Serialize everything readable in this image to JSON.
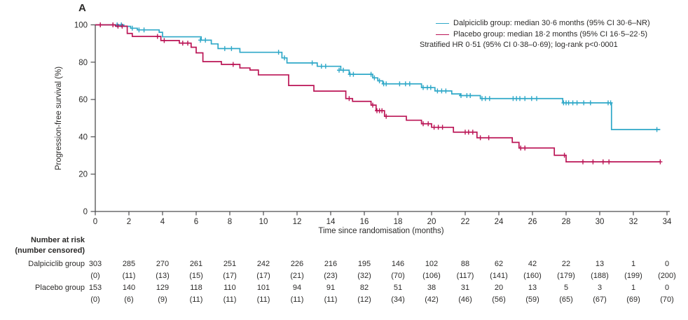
{
  "panel_label": "A",
  "colors": {
    "dalpiciclib": "#2FA8C8",
    "placebo": "#BB1556",
    "axis": "#4d4d4f",
    "text": "#2b2a29"
  },
  "legend": {
    "entries": [
      {
        "label": "Dalpiciclib group: median 30·6 months (95% CI 30·6–NR)"
      },
      {
        "label": "Placebo group: median 18·2 months (95% CI 16·5–22·5)"
      }
    ],
    "note": "Stratified HR 0·51 (95% CI 0·38–0·69); log-rank p<0·0001"
  },
  "chart_data": {
    "type": "line",
    "subtype": "kaplan_meier_step",
    "title": "",
    "xlabel": "Time since randomisation (months)",
    "ylabel": "Progression-free survival (%)",
    "xlim": [
      0,
      34
    ],
    "ylim": [
      0,
      100
    ],
    "xticks": [
      0,
      2,
      4,
      6,
      8,
      10,
      12,
      14,
      16,
      18,
      20,
      22,
      24,
      26,
      28,
      30,
      32,
      34
    ],
    "yticks": [
      0,
      20,
      40,
      60,
      80,
      100
    ],
    "grid": false,
    "legend_position": "top-right",
    "series": [
      {
        "name": "Dalpiciclib group",
        "color": "#2FA8C8",
        "steps": [
          [
            0,
            100
          ],
          [
            1.7,
            99.2
          ],
          [
            2.1,
            98.2
          ],
          [
            2.5,
            97.3
          ],
          [
            3.8,
            96
          ],
          [
            4,
            93.6
          ],
          [
            6.3,
            91.8
          ],
          [
            6.9,
            89.8
          ],
          [
            7.3,
            87.3
          ],
          [
            8.6,
            85.3
          ],
          [
            11.1,
            82.3
          ],
          [
            11.4,
            79.6
          ],
          [
            13.2,
            77.8
          ],
          [
            14.6,
            75.7
          ],
          [
            15.1,
            73.5
          ],
          [
            16.5,
            71.6
          ],
          [
            16.8,
            70
          ],
          [
            17.1,
            68.4
          ],
          [
            19.4,
            66.4
          ],
          [
            20.2,
            64.6
          ],
          [
            21.2,
            63
          ],
          [
            21.7,
            62.1
          ],
          [
            22.9,
            60.5
          ],
          [
            27.8,
            58.2
          ],
          [
            30.7,
            43.9
          ],
          [
            33.6,
            43.9
          ]
        ],
        "censors": [
          [
            1.3,
            100
          ],
          [
            1.55,
            100
          ],
          [
            2.2,
            98.2
          ],
          [
            2.6,
            97.3
          ],
          [
            2.9,
            97.3
          ],
          [
            6.25,
            91.8
          ],
          [
            6.55,
            91.8
          ],
          [
            7.7,
            87.3
          ],
          [
            8.1,
            87.3
          ],
          [
            10.9,
            85.3
          ],
          [
            11.25,
            82.3
          ],
          [
            12.9,
            79.6
          ],
          [
            13.45,
            77.8
          ],
          [
            13.7,
            77.8
          ],
          [
            14.5,
            75.7
          ],
          [
            14.75,
            75.7
          ],
          [
            15.15,
            73.5
          ],
          [
            15.35,
            73.5
          ],
          [
            16.4,
            73.5
          ],
          [
            16.6,
            71.6
          ],
          [
            16.9,
            70
          ],
          [
            17.15,
            68.4
          ],
          [
            17.3,
            68.4
          ],
          [
            18.1,
            68.4
          ],
          [
            18.45,
            68.4
          ],
          [
            18.7,
            68.4
          ],
          [
            19.5,
            66.4
          ],
          [
            19.75,
            66.4
          ],
          [
            19.95,
            66.4
          ],
          [
            20.35,
            64.6
          ],
          [
            20.6,
            64.6
          ],
          [
            20.85,
            64.6
          ],
          [
            21.75,
            62.1
          ],
          [
            22.1,
            62.1
          ],
          [
            22.3,
            62.1
          ],
          [
            23,
            60.5
          ],
          [
            23.2,
            60.5
          ],
          [
            23.45,
            60.5
          ],
          [
            24.85,
            60.5
          ],
          [
            25.05,
            60.5
          ],
          [
            25.25,
            60.5
          ],
          [
            25.55,
            60.5
          ],
          [
            25.95,
            60.5
          ],
          [
            26.25,
            60.5
          ],
          [
            27.85,
            58.2
          ],
          [
            28,
            58.2
          ],
          [
            28.15,
            58.2
          ],
          [
            28.4,
            58.2
          ],
          [
            28.65,
            58.2
          ],
          [
            29.05,
            58.2
          ],
          [
            29.45,
            58.2
          ],
          [
            30.5,
            58.2
          ],
          [
            30.65,
            58.2
          ],
          [
            33.4,
            43.9
          ]
        ]
      },
      {
        "name": "Placebo group",
        "color": "#BB1556",
        "steps": [
          [
            0,
            100
          ],
          [
            1.2,
            99.3
          ],
          [
            1.9,
            95.4
          ],
          [
            2.2,
            93.8
          ],
          [
            3.9,
            91.6
          ],
          [
            5,
            90.2
          ],
          [
            5.7,
            88
          ],
          [
            6,
            85
          ],
          [
            6.4,
            80.3
          ],
          [
            7.5,
            78.8
          ],
          [
            8.6,
            76.9
          ],
          [
            9.2,
            75.8
          ],
          [
            9.7,
            73.2
          ],
          [
            11.5,
            67.5
          ],
          [
            13,
            64.5
          ],
          [
            14.9,
            60.5
          ],
          [
            15.3,
            59
          ],
          [
            16.4,
            57
          ],
          [
            16.7,
            54
          ],
          [
            17.2,
            51
          ],
          [
            18.5,
            48.9
          ],
          [
            19.4,
            47
          ],
          [
            20,
            45.1
          ],
          [
            21.3,
            42.5
          ],
          [
            22.7,
            39.5
          ],
          [
            24.8,
            37
          ],
          [
            25.2,
            34
          ],
          [
            27.3,
            30.1
          ],
          [
            28,
            26.6
          ],
          [
            33.6,
            26.6
          ]
        ],
        "censors": [
          [
            0.3,
            100
          ],
          [
            1.05,
            100
          ],
          [
            1.35,
            99.3
          ],
          [
            1.6,
            99.3
          ],
          [
            3.7,
            93.8
          ],
          [
            4.1,
            91.6
          ],
          [
            5.2,
            90.2
          ],
          [
            5.5,
            90.2
          ],
          [
            8.2,
            78.8
          ],
          [
            15.1,
            60.5
          ],
          [
            16.5,
            57
          ],
          [
            16.75,
            54
          ],
          [
            16.9,
            54
          ],
          [
            17.05,
            54
          ],
          [
            17.3,
            51
          ],
          [
            19.5,
            47
          ],
          [
            19.8,
            47
          ],
          [
            20.15,
            45.1
          ],
          [
            20.4,
            45.1
          ],
          [
            20.65,
            45.1
          ],
          [
            22,
            42.5
          ],
          [
            22.2,
            42.5
          ],
          [
            22.45,
            42.5
          ],
          [
            22.9,
            39.5
          ],
          [
            23.4,
            39.5
          ],
          [
            25.3,
            34
          ],
          [
            25.55,
            34
          ],
          [
            27.9,
            30.1
          ],
          [
            29,
            26.6
          ],
          [
            29.6,
            26.6
          ],
          [
            30.2,
            26.6
          ],
          [
            30.55,
            26.6
          ],
          [
            33.6,
            26.6
          ]
        ]
      }
    ]
  },
  "risk_table": {
    "header_line1": "Number at risk",
    "header_line2": "(number censored)",
    "times": [
      0,
      2,
      4,
      6,
      8,
      10,
      12,
      14,
      16,
      18,
      20,
      22,
      24,
      26,
      28,
      30,
      32,
      34
    ],
    "rows": [
      {
        "label": "Dalpiciclib group",
        "at_risk": [
          303,
          285,
          270,
          261,
          251,
          242,
          226,
          216,
          195,
          146,
          102,
          88,
          62,
          42,
          22,
          13,
          1,
          0
        ],
        "censored": [
          "(0)",
          "(11)",
          "(13)",
          "(15)",
          "(17)",
          "(17)",
          "(21)",
          "(23)",
          "(32)",
          "(70)",
          "(106)",
          "(117)",
          "(141)",
          "(160)",
          "(179)",
          "(188)",
          "(199)",
          "(200)"
        ]
      },
      {
        "label": "Placebo group",
        "at_risk": [
          153,
          140,
          129,
          118,
          110,
          101,
          94,
          91,
          82,
          51,
          38,
          31,
          20,
          13,
          5,
          3,
          1,
          0
        ],
        "censored": [
          "(0)",
          "(6)",
          "(9)",
          "(11)",
          "(11)",
          "(11)",
          "(11)",
          "(11)",
          "(12)",
          "(34)",
          "(42)",
          "(46)",
          "(56)",
          "(59)",
          "(65)",
          "(67)",
          "(69)",
          "(70)"
        ]
      }
    ]
  }
}
